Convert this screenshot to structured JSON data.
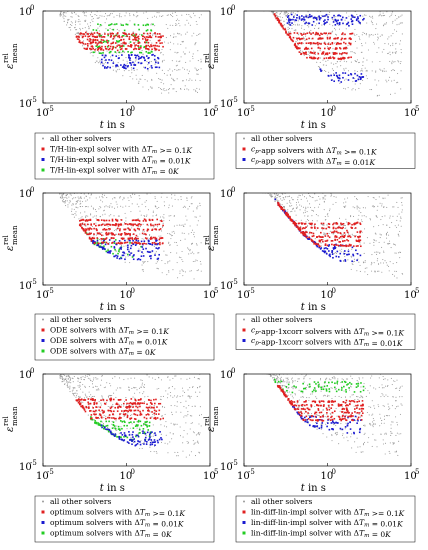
{
  "colors": {
    "grey": "#9a9a9a",
    "red": "#e02020",
    "blue": "#1a1ad0",
    "green": "#22cc22",
    "dark": "#222222"
  },
  "chart_data": [
    {
      "type": "scatter",
      "xscale": "log",
      "yscale": "log",
      "xlim": [
        1e-05,
        100000.0
      ],
      "ylim": [
        1e-05,
        1
      ],
      "xlabel": "t in s",
      "ylabel": "ε rel mean",
      "xticks": [
        "10",
        "10",
        "10"
      ],
      "xtick_exp": [
        "-5",
        "0",
        "5"
      ],
      "yticks": [
        "10",
        "10"
      ],
      "ytick_exp": [
        "-5",
        "0"
      ],
      "series": [
        {
          "name": "all other solvers",
          "color": "#9a9a9a",
          "marker": "dot"
        },
        {
          "name": "T/H-lin-expl solver with ΔT_m >= 0.1K",
          "color": "#e02020",
          "marker": "square"
        },
        {
          "name": "T/H-lin-expl solver with ΔT_m = 0.01K",
          "color": "#1a1ad0",
          "marker": "square"
        },
        {
          "name": "T/H-lin-expl solver with ΔT_m = 0K",
          "color": "#22cc22",
          "marker": "square"
        }
      ],
      "clusters": [
        [
          0.5,
          0.6
        ],
        [
          1.0,
          0.35
        ],
        [
          2.0,
          0.18
        ]
      ]
    },
    {
      "type": "scatter",
      "xscale": "log",
      "yscale": "log",
      "xlim": [
        1e-05,
        100000.0
      ],
      "ylim": [
        1e-05,
        1
      ],
      "xlabel": "t in s",
      "ylabel": "ε rel mean",
      "xticks": [
        "10",
        "10",
        "10"
      ],
      "xtick_exp": [
        "-5",
        "0",
        "5"
      ],
      "yticks": [
        "10",
        "10"
      ],
      "ytick_exp": [
        "-5",
        "0"
      ],
      "series": [
        {
          "name": "all other solvers",
          "color": "#9a9a9a",
          "marker": "dot"
        },
        {
          "name": "c_p-app solvers with ΔT_m >= 0.1K",
          "color": "#e02020",
          "marker": "square"
        },
        {
          "name": "c_p-app solvers with ΔT_m = 0.01K",
          "color": "#1a1ad0",
          "marker": "square"
        }
      ],
      "clusters": [
        [
          0.3,
          0.7
        ],
        [
          0.9,
          0.5
        ]
      ]
    },
    {
      "type": "scatter",
      "xscale": "log",
      "yscale": "log",
      "xlim": [
        1e-05,
        100000.0
      ],
      "ylim": [
        1e-05,
        1
      ],
      "xlabel": "t in s",
      "ylabel": "ε rel mean",
      "xticks": [
        "10",
        "10",
        "10"
      ],
      "xtick_exp": [
        "-5",
        "0",
        "5"
      ],
      "yticks": [
        "10",
        "10"
      ],
      "ytick_exp": [
        "-5",
        "0"
      ],
      "series": [
        {
          "name": "all other solvers",
          "color": "#9a9a9a",
          "marker": "dot"
        },
        {
          "name": "ODE solvers with ΔT_m >= 0.1K",
          "color": "#e02020",
          "marker": "square"
        },
        {
          "name": "ODE solvers with ΔT_m = 0.01K",
          "color": "#1a1ad0",
          "marker": "square"
        },
        {
          "name": "ODE solvers with ΔT_m = 0K",
          "color": "#22cc22",
          "marker": "square"
        }
      ],
      "clusters": [
        [
          0.9,
          0.6
        ],
        [
          1.0,
          0.4
        ],
        [
          1.0,
          0.2
        ]
      ]
    },
    {
      "type": "scatter",
      "xscale": "log",
      "yscale": "log",
      "xlim": [
        1e-05,
        100000.0
      ],
      "ylim": [
        1e-05,
        1
      ],
      "xlabel": "t in s",
      "ylabel": "ε rel mean",
      "xticks": [
        "10",
        "10",
        "10"
      ],
      "xtick_exp": [
        "-5",
        "0",
        "5"
      ],
      "yticks": [
        "10",
        "10"
      ],
      "ytick_exp": [
        "-5",
        "0"
      ],
      "series": [
        {
          "name": "all other solvers",
          "color": "#9a9a9a",
          "marker": "dot"
        },
        {
          "name": "c_p-app-1xcorr solvers with ΔT_m >= 0.1K",
          "color": "#e02020",
          "marker": "square"
        },
        {
          "name": "c_p-app-1xcorr solvers with ΔT_m = 0.01K",
          "color": "#1a1ad0",
          "marker": "square"
        }
      ],
      "clusters": [
        [
          0.3,
          0.6
        ],
        [
          0.8,
          0.5
        ]
      ]
    },
    {
      "type": "scatter",
      "xscale": "log",
      "yscale": "log",
      "xlim": [
        1e-05,
        100000.0
      ],
      "ylim": [
        1e-05,
        1
      ],
      "xlabel": "t in s",
      "ylabel": "ε rel mean",
      "xticks": [
        "10",
        "10",
        "10"
      ],
      "xtick_exp": [
        "-5",
        "0",
        "5"
      ],
      "yticks": [
        "10",
        "10"
      ],
      "ytick_exp": [
        "-5",
        "0"
      ],
      "series": [
        {
          "name": "all other solvers",
          "color": "#9a9a9a",
          "marker": "dot"
        },
        {
          "name": "optimum solvers with ΔT_m >= 0.1K",
          "color": "#e02020",
          "marker": "square"
        },
        {
          "name": "optimum solvers with ΔT_m = 0.01K",
          "color": "#1a1ad0",
          "marker": "square"
        },
        {
          "name": "optimum solvers with ΔT_m = 0K",
          "color": "#22cc22",
          "marker": "square"
        }
      ],
      "clusters": [
        [
          0.55,
          0.6
        ],
        [
          1.0,
          0.35
        ],
        [
          1.0,
          0.25
        ]
      ]
    },
    {
      "type": "scatter",
      "xscale": "log",
      "yscale": "log",
      "xlim": [
        1e-05,
        100000.0
      ],
      "ylim": [
        1e-05,
        1
      ],
      "xlabel": "t in s",
      "ylabel": "ε rel mean",
      "xticks": [
        "10",
        "10",
        "10"
      ],
      "xtick_exp": [
        "-5",
        "0",
        "5"
      ],
      "yticks": [
        "10",
        "10"
      ],
      "ytick_exp": [
        "-5",
        "0"
      ],
      "series": [
        {
          "name": "all other solvers",
          "color": "#9a9a9a",
          "marker": "dot"
        },
        {
          "name": "lin-diff-lin-impl solver with ΔT_m >= 0.1K",
          "color": "#e02020",
          "marker": "square"
        },
        {
          "name": "lin-diff-lin-impl solver with ΔT_m = 0.01K",
          "color": "#1a1ad0",
          "marker": "square"
        },
        {
          "name": "lin-diff-lin-impl solver with ΔT_m = 0K",
          "color": "#22cc22",
          "marker": "square"
        }
      ],
      "clusters": [
        [
          0.4,
          0.6
        ],
        [
          0.6,
          0.5
        ],
        [
          0.6,
          0.9
        ]
      ]
    }
  ]
}
